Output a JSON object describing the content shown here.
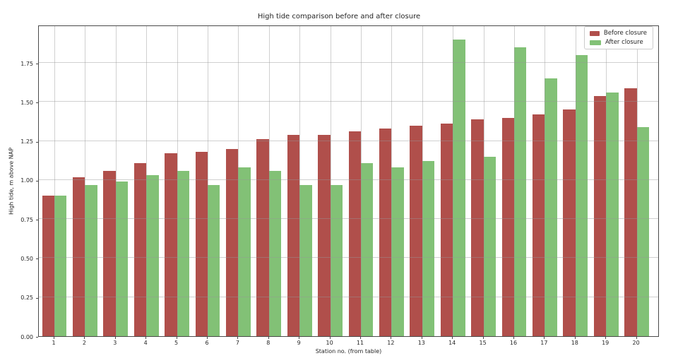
{
  "title": "High tide comparison before and after closure",
  "axes": {
    "xlabel": "Station no. (from table)",
    "ylabel": "High tide, m above NAP"
  },
  "legend": {
    "items": [
      {
        "label": "Before closure",
        "color": "#b04f4b"
      },
      {
        "label": "After closure",
        "color": "#82c176"
      }
    ]
  },
  "colors": {
    "before": "#b04f4b",
    "after": "#82c176",
    "grid": "#cccccc",
    "spine": "#4a4a4a",
    "text": "#262626",
    "background": "#ffffff"
  },
  "chart_data": {
    "type": "bar",
    "title": "High tide comparison before and after closure",
    "xlabel": "Station no. (from table)",
    "ylabel": "High tide, m above NAP",
    "categories": [
      "1",
      "2",
      "3",
      "4",
      "5",
      "6",
      "7",
      "8",
      "9",
      "10",
      "11",
      "12",
      "13",
      "14",
      "15",
      "16",
      "17",
      "18",
      "19",
      "20"
    ],
    "series": [
      {
        "name": "Before closure",
        "color": "#b04f4b",
        "values": [
          0.9,
          1.02,
          1.06,
          1.11,
          1.17,
          1.18,
          1.2,
          1.26,
          1.29,
          1.29,
          1.31,
          1.33,
          1.35,
          1.36,
          1.39,
          1.4,
          1.42,
          1.45,
          1.54,
          1.59
        ]
      },
      {
        "name": "After closure",
        "color": "#82c176",
        "values": [
          0.9,
          0.97,
          0.99,
          1.03,
          1.06,
          0.97,
          1.08,
          1.06,
          0.97,
          0.97,
          1.11,
          1.08,
          1.12,
          1.9,
          1.15,
          1.85,
          1.65,
          1.8,
          1.56,
          1.34
        ]
      }
    ],
    "ylim": [
      0,
      1.995
    ],
    "yticks": [
      0.0,
      0.25,
      0.5,
      0.75,
      1.0,
      1.25,
      1.5,
      1.75
    ],
    "ytick_labels": [
      "0.00",
      "0.25",
      "0.50",
      "0.75",
      "1.00",
      "1.25",
      "1.50",
      "1.75"
    ],
    "grid": true,
    "legend_position": "upper right"
  }
}
